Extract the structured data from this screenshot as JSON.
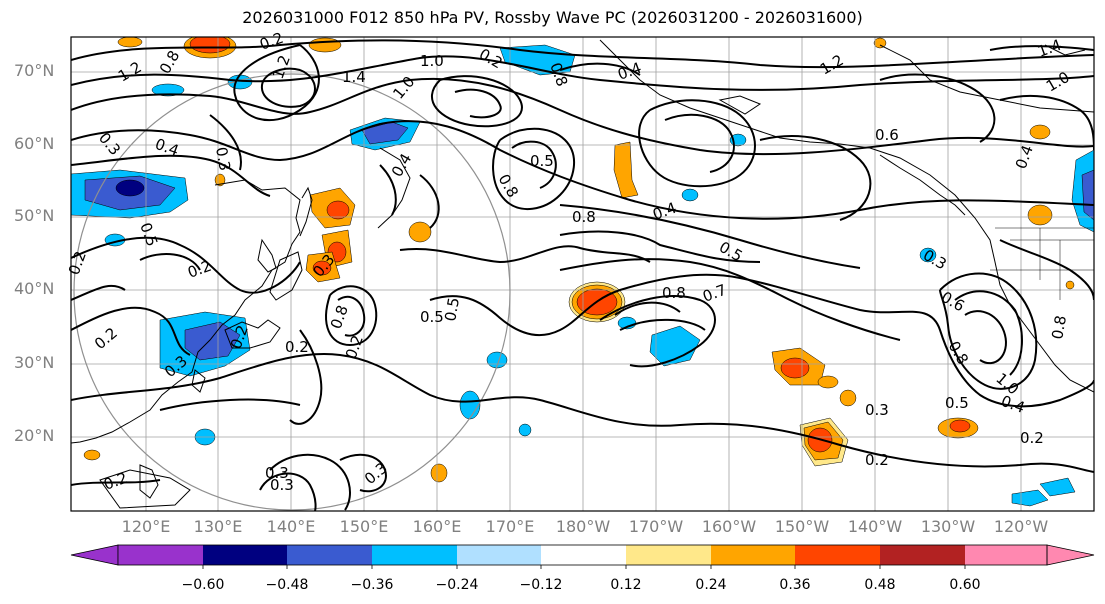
{
  "title": "2026031000 F012 850 hPa PV, Rossby Wave PC (2026031200 - 2026031600)",
  "lat_labels": [
    "70°N",
    "60°N",
    "50°N",
    "40°N",
    "30°N",
    "20°N"
  ],
  "lon_labels": [
    "120°E",
    "130°E",
    "140°E",
    "150°E",
    "160°E",
    "170°E",
    "180°W",
    "170°W",
    "160°W",
    "150°W",
    "140°W",
    "130°W",
    "120°W"
  ],
  "colorbar": {
    "ticks": [
      "−0.60",
      "−0.48",
      "−0.36",
      "−0.24",
      "−0.12",
      "0.12",
      "0.24",
      "0.36",
      "0.48",
      "0.60"
    ],
    "colors": [
      "#9932cc",
      "#000080",
      "#3a5bd0",
      "#00bfff",
      "#b0e0ff",
      "#ffffff",
      "#ffe88a",
      "#ffa500",
      "#ff4500",
      "#b22222",
      "#ff88b0"
    ]
  },
  "contour_labels": [
    "1.2",
    "0.8",
    "0.3",
    "0.2",
    "1.0",
    "0.2",
    "0.4",
    "1.2",
    "1.4",
    "1.0",
    "1.4",
    "1.2",
    "0.4",
    "0.8",
    "0.3",
    "0.4",
    "0.5",
    "0.2",
    "0.8",
    "0.5",
    "0.5",
    "0.6",
    "0.8",
    "0.4",
    "0.3",
    "0.2",
    "0.3",
    "0.4",
    "0.2",
    "0.8",
    "0.5",
    "0.6",
    "0.2",
    "0.8",
    "0.7",
    "0.5",
    "0.3",
    "0.8",
    "1.0",
    "0.5",
    "0.3",
    "0.2",
    "0.2",
    "0.2",
    "0.3",
    "0.3",
    "0.2",
    "0.2",
    "0.3",
    "0.8",
    "0.4",
    "1.0"
  ]
}
